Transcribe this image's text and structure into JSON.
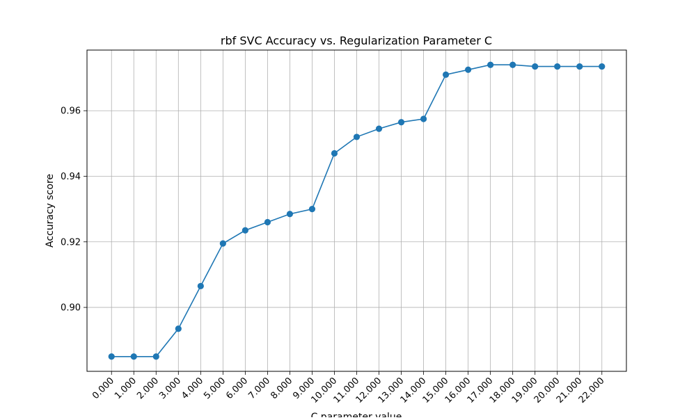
{
  "chart_data": {
    "type": "line",
    "title": "rbf SVC Accuracy vs. Regularization Parameter C",
    "xlabel": "C parameter value",
    "ylabel": "Accuracy score",
    "x": [
      0,
      1,
      2,
      3,
      4,
      5,
      6,
      7,
      8,
      9,
      10,
      11,
      12,
      13,
      14,
      15,
      16,
      17,
      18,
      19,
      20,
      21,
      22
    ],
    "x_tick_labels": [
      "0.000",
      "1.000",
      "2.000",
      "3.000",
      "4.000",
      "5.000",
      "6.000",
      "7.000",
      "8.000",
      "9.000",
      "10.000",
      "11.000",
      "12.000",
      "13.000",
      "14.000",
      "15.000",
      "16.000",
      "17.000",
      "18.000",
      "19.000",
      "20.000",
      "21.000",
      "22.000"
    ],
    "y_ticks": [
      0.9,
      0.92,
      0.94,
      0.96
    ],
    "y_tick_labels": [
      "0.90",
      "0.92",
      "0.94",
      "0.96"
    ],
    "xlim": [
      -1.1,
      23.1
    ],
    "ylim": [
      0.8805,
      0.9785
    ],
    "grid": true,
    "series": [
      {
        "color": "#1f77b4",
        "marker": "circle",
        "values": [
          0.885,
          0.885,
          0.885,
          0.8935,
          0.9065,
          0.9195,
          0.9235,
          0.926,
          0.9285,
          0.93,
          0.947,
          0.952,
          0.9545,
          0.9565,
          0.9575,
          0.971,
          0.9725,
          0.974,
          0.974,
          0.9735,
          0.9735,
          0.9735,
          0.9735
        ]
      }
    ]
  }
}
